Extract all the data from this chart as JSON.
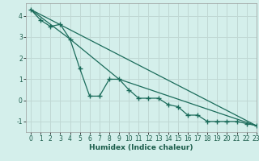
{
  "title": "",
  "xlabel": "Humidex (Indice chaleur)",
  "background_color": "#d4efeb",
  "grid_color": "#c0d8d4",
  "line_color": "#1a6b5a",
  "xlim": [
    -0.5,
    23
  ],
  "ylim": [
    -1.5,
    4.6
  ],
  "yticks": [
    -1,
    0,
    1,
    2,
    3,
    4
  ],
  "xticks": [
    0,
    1,
    2,
    3,
    4,
    5,
    6,
    7,
    8,
    9,
    10,
    11,
    12,
    13,
    14,
    15,
    16,
    17,
    18,
    19,
    20,
    21,
    22,
    23
  ],
  "line1_x": [
    0,
    1,
    2,
    3,
    4,
    5,
    6,
    7,
    8,
    9,
    10,
    11,
    12,
    13,
    14,
    15,
    16,
    17,
    18,
    19,
    20,
    21,
    22,
    23
  ],
  "line1_y": [
    4.3,
    3.8,
    3.5,
    3.6,
    2.9,
    1.5,
    0.2,
    0.2,
    1.0,
    1.0,
    0.5,
    0.1,
    0.1,
    0.1,
    -0.2,
    -0.3,
    -0.7,
    -0.7,
    -1.0,
    -1.0,
    -1.0,
    -1.0,
    -1.1,
    -1.2
  ],
  "line2_x": [
    0,
    23
  ],
  "line2_y": [
    4.3,
    -1.2
  ],
  "line3_x": [
    0,
    4,
    9,
    23
  ],
  "line3_y": [
    4.3,
    2.9,
    1.0,
    -1.2
  ]
}
